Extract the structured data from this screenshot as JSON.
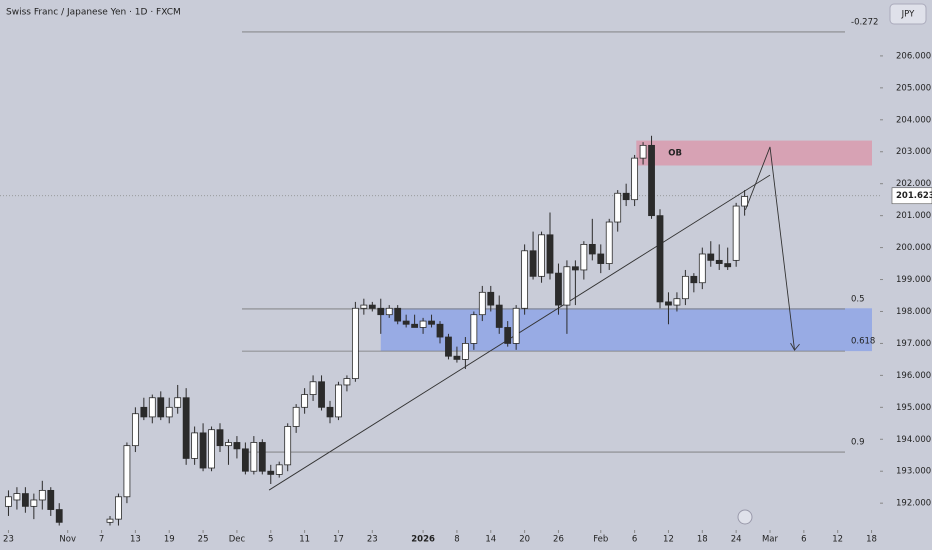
{
  "chart_data": {
    "type": "candlestick",
    "title": "Swiss Franc / Japanese Yen · 1D · FXCM",
    "currency": "JPY",
    "xlim": [
      -1,
      103
    ],
    "ylim": [
      191.16,
      207.75
    ],
    "yticks": [
      {
        "value": 192,
        "label": "192.000"
      },
      {
        "value": 193,
        "label": "193.000"
      },
      {
        "value": 194,
        "label": "194.000"
      },
      {
        "value": 195,
        "label": "195.000"
      },
      {
        "value": 196,
        "label": "196.000"
      },
      {
        "value": 197,
        "label": "197.000"
      },
      {
        "value": 198,
        "label": "198.000"
      },
      {
        "value": 199,
        "label": "199.000"
      },
      {
        "value": 200,
        "label": "200.000"
      },
      {
        "value": 201,
        "label": "201.000"
      },
      {
        "value": 202,
        "label": "202.000"
      },
      {
        "value": 203,
        "label": "203.000"
      },
      {
        "value": 204,
        "label": "204.000"
      },
      {
        "value": 205,
        "label": "205.000"
      },
      {
        "value": 206,
        "label": "206.000"
      }
    ],
    "xticks": [
      {
        "value": 0,
        "label": "23"
      },
      {
        "value": 7,
        "label": "Nov"
      },
      {
        "value": 11,
        "label": "7"
      },
      {
        "value": 15,
        "label": "13"
      },
      {
        "value": 19,
        "label": "19"
      },
      {
        "value": 23,
        "label": "25"
      },
      {
        "value": 27,
        "label": "Dec"
      },
      {
        "value": 31,
        "label": "5"
      },
      {
        "value": 35,
        "label": "11"
      },
      {
        "value": 39,
        "label": "17"
      },
      {
        "value": 43,
        "label": "23"
      },
      {
        "value": 49,
        "label": "2026"
      },
      {
        "value": 53,
        "label": "8"
      },
      {
        "value": 57,
        "label": "14"
      },
      {
        "value": 61,
        "label": "20"
      },
      {
        "value": 65,
        "label": "26"
      },
      {
        "value": 70,
        "label": "Feb"
      },
      {
        "value": 74,
        "label": "6"
      },
      {
        "value": 78,
        "label": "12"
      },
      {
        "value": 82,
        "label": "18"
      },
      {
        "value": 86,
        "label": "24"
      },
      {
        "value": 90,
        "label": "Mar"
      },
      {
        "value": 94,
        "label": "6"
      },
      {
        "value": 98,
        "label": "12"
      },
      {
        "value": 102,
        "label": "18"
      }
    ],
    "up_color": "#ffffff",
    "down_color": "#2b2b2b",
    "x": [
      0,
      1,
      2,
      3,
      4,
      5,
      6,
      12,
      13,
      14,
      15,
      16,
      17,
      18,
      19,
      20,
      21,
      22,
      23,
      24,
      25,
      26,
      27,
      28,
      29,
      30,
      31,
      32,
      33,
      34,
      35,
      36,
      37,
      38,
      39,
      40,
      41,
      42,
      43,
      44,
      45,
      46,
      47,
      48,
      49,
      50,
      51,
      52,
      53,
      54,
      55,
      56,
      57,
      58,
      59,
      60,
      61,
      62,
      63,
      64,
      65,
      66,
      67,
      68,
      69,
      70,
      71,
      72,
      73,
      74,
      75,
      76,
      77,
      78,
      79,
      80,
      81,
      82,
      83,
      84,
      85,
      86,
      87
    ],
    "open": [
      191.9,
      192.1,
      192.3,
      191.9,
      192.1,
      192.4,
      191.8,
      191.4,
      191.5,
      192.2,
      193.8,
      195.0,
      194.7,
      195.3,
      194.7,
      195.0,
      195.3,
      193.4,
      194.2,
      193.1,
      194.3,
      193.8,
      193.9,
      193.7,
      193.0,
      193.9,
      193.0,
      192.9,
      193.2,
      194.4,
      195.0,
      195.4,
      195.8,
      195.0,
      194.7,
      195.7,
      195.9,
      198.1,
      198.2,
      198.1,
      197.9,
      198.1,
      197.7,
      197.6,
      197.5,
      197.7,
      197.6,
      197.2,
      196.6,
      196.5,
      197.0,
      197.9,
      198.6,
      198.2,
      197.5,
      197.0,
      198.1,
      199.9,
      199.1,
      200.4,
      199.2,
      198.2,
      199.4,
      199.3,
      200.1,
      199.8,
      199.5,
      200.8,
      201.7,
      201.5,
      202.8,
      203.2,
      201.0,
      198.3,
      198.2,
      198.4,
      199.1,
      198.9,
      199.8,
      199.6,
      199.5,
      199.6,
      201.3
    ],
    "high": [
      192.4,
      192.5,
      192.5,
      192.3,
      192.7,
      192.5,
      192.0,
      191.6,
      192.3,
      193.9,
      195.0,
      195.3,
      195.4,
      195.5,
      195.3,
      195.7,
      195.6,
      194.4,
      194.5,
      194.4,
      194.5,
      194.0,
      194.1,
      193.9,
      194.1,
      194.0,
      193.2,
      193.3,
      194.5,
      195.1,
      195.6,
      196.0,
      196.0,
      195.2,
      195.8,
      196.0,
      198.3,
      198.4,
      198.3,
      198.4,
      198.2,
      198.2,
      197.9,
      197.9,
      197.8,
      197.9,
      197.7,
      197.3,
      196.9,
      197.2,
      198.0,
      198.8,
      198.8,
      198.5,
      197.7,
      198.2,
      200.1,
      200.5,
      200.5,
      201.1,
      199.5,
      199.6,
      199.6,
      200.2,
      200.9,
      200.1,
      200.9,
      201.8,
      202.0,
      202.9,
      203.3,
      203.5,
      201.2,
      198.6,
      198.6,
      199.3,
      199.2,
      200.0,
      200.2,
      200.1,
      200.0,
      201.4,
      201.8
    ],
    "low": [
      191.6,
      191.8,
      191.7,
      191.5,
      191.8,
      191.6,
      191.3,
      191.3,
      191.3,
      192.0,
      193.6,
      194.6,
      194.5,
      194.6,
      194.5,
      194.8,
      193.2,
      193.2,
      193.0,
      193.0,
      193.6,
      193.2,
      193.4,
      192.9,
      192.9,
      192.9,
      192.6,
      192.8,
      193.0,
      194.2,
      194.8,
      195.2,
      194.9,
      194.5,
      194.6,
      195.5,
      195.8,
      197.9,
      198.0,
      197.3,
      197.8,
      197.6,
      197.5,
      197.5,
      197.3,
      197.5,
      197.0,
      196.5,
      196.4,
      196.2,
      196.8,
      197.7,
      198.0,
      197.3,
      196.9,
      196.8,
      197.9,
      199.0,
      198.9,
      199.0,
      197.9,
      197.3,
      198.2,
      199.0,
      199.6,
      199.2,
      199.3,
      200.5,
      201.3,
      201.3,
      202.6,
      200.9,
      198.1,
      197.6,
      198.0,
      198.2,
      198.6,
      198.7,
      199.4,
      199.3,
      199.3,
      199.4,
      201.0
    ],
    "close": [
      192.2,
      192.3,
      191.9,
      192.1,
      192.4,
      191.8,
      191.4,
      191.5,
      192.2,
      193.8,
      194.8,
      194.7,
      195.3,
      194.7,
      195.0,
      195.3,
      193.4,
      194.2,
      193.1,
      194.3,
      193.8,
      193.9,
      193.7,
      193.0,
      193.9,
      193.0,
      192.9,
      193.2,
      194.4,
      195.0,
      195.4,
      195.8,
      195.0,
      194.7,
      195.7,
      195.9,
      198.1,
      198.2,
      198.1,
      197.9,
      198.1,
      197.7,
      197.6,
      197.5,
      197.7,
      197.6,
      197.2,
      196.6,
      196.5,
      197.0,
      197.9,
      198.6,
      198.2,
      197.5,
      197.0,
      198.1,
      199.9,
      199.1,
      200.4,
      199.2,
      198.2,
      199.4,
      199.3,
      200.1,
      199.8,
      199.5,
      200.8,
      201.7,
      201.5,
      202.8,
      203.2,
      201.0,
      198.3,
      198.2,
      198.4,
      199.1,
      198.9,
      199.8,
      199.6,
      199.5,
      199.4,
      201.3,
      201.6
    ],
    "last_price": 201.623,
    "levels": [
      {
        "label": "-0.272",
        "value": 206.75
      },
      {
        "label": "0.5",
        "value": 198.08
      },
      {
        "label": "0.618",
        "value": 196.76
      },
      {
        "label": "0.9",
        "value": 193.6
      }
    ],
    "zones": [
      {
        "label": "OB",
        "top": 203.35,
        "bottom": 202.57,
        "x0": 74.2,
        "color": "#d99aae"
      },
      {
        "top": 198.1,
        "bottom": 196.76,
        "x0": 44,
        "color": "#8fa4e6"
      }
    ],
    "trendline": {
      "x": [
        30.8,
        90
      ],
      "y": [
        192.41,
        202.27
      ]
    },
    "projection": {
      "x": [
        87.1,
        90,
        92.9
      ],
      "y": [
        201.18,
        203.15,
        196.79
      ]
    }
  }
}
